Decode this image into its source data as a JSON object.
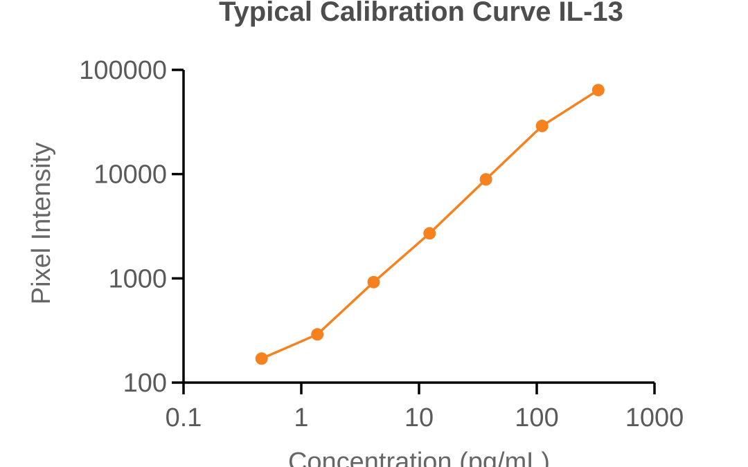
{
  "chart_data": {
    "type": "line",
    "title": "Typical Calibration Curve IL-13",
    "xlabel": "Concentration (pg/mL)",
    "ylabel": "Pixel Intensity",
    "x_scale": "log",
    "y_scale": "log",
    "xlim": [
      0.1,
      1000
    ],
    "ylim": [
      100,
      100000
    ],
    "x_ticks": [
      "0.1",
      "1",
      "10",
      "100",
      "1000"
    ],
    "x_tick_values": [
      0.1,
      1,
      10,
      100,
      1000
    ],
    "y_ticks": [
      "100",
      "1000",
      "10000",
      "100000"
    ],
    "y_tick_values": [
      100,
      1000,
      10000,
      100000
    ],
    "grid": false,
    "series": [
      {
        "color": "#f5821f",
        "marker": "circle",
        "x": [
          0.46,
          1.37,
          4.12,
          12.3,
          37,
          111,
          333
        ],
        "y": [
          170,
          290,
          920,
          2700,
          8900,
          29000,
          64000
        ]
      }
    ]
  }
}
